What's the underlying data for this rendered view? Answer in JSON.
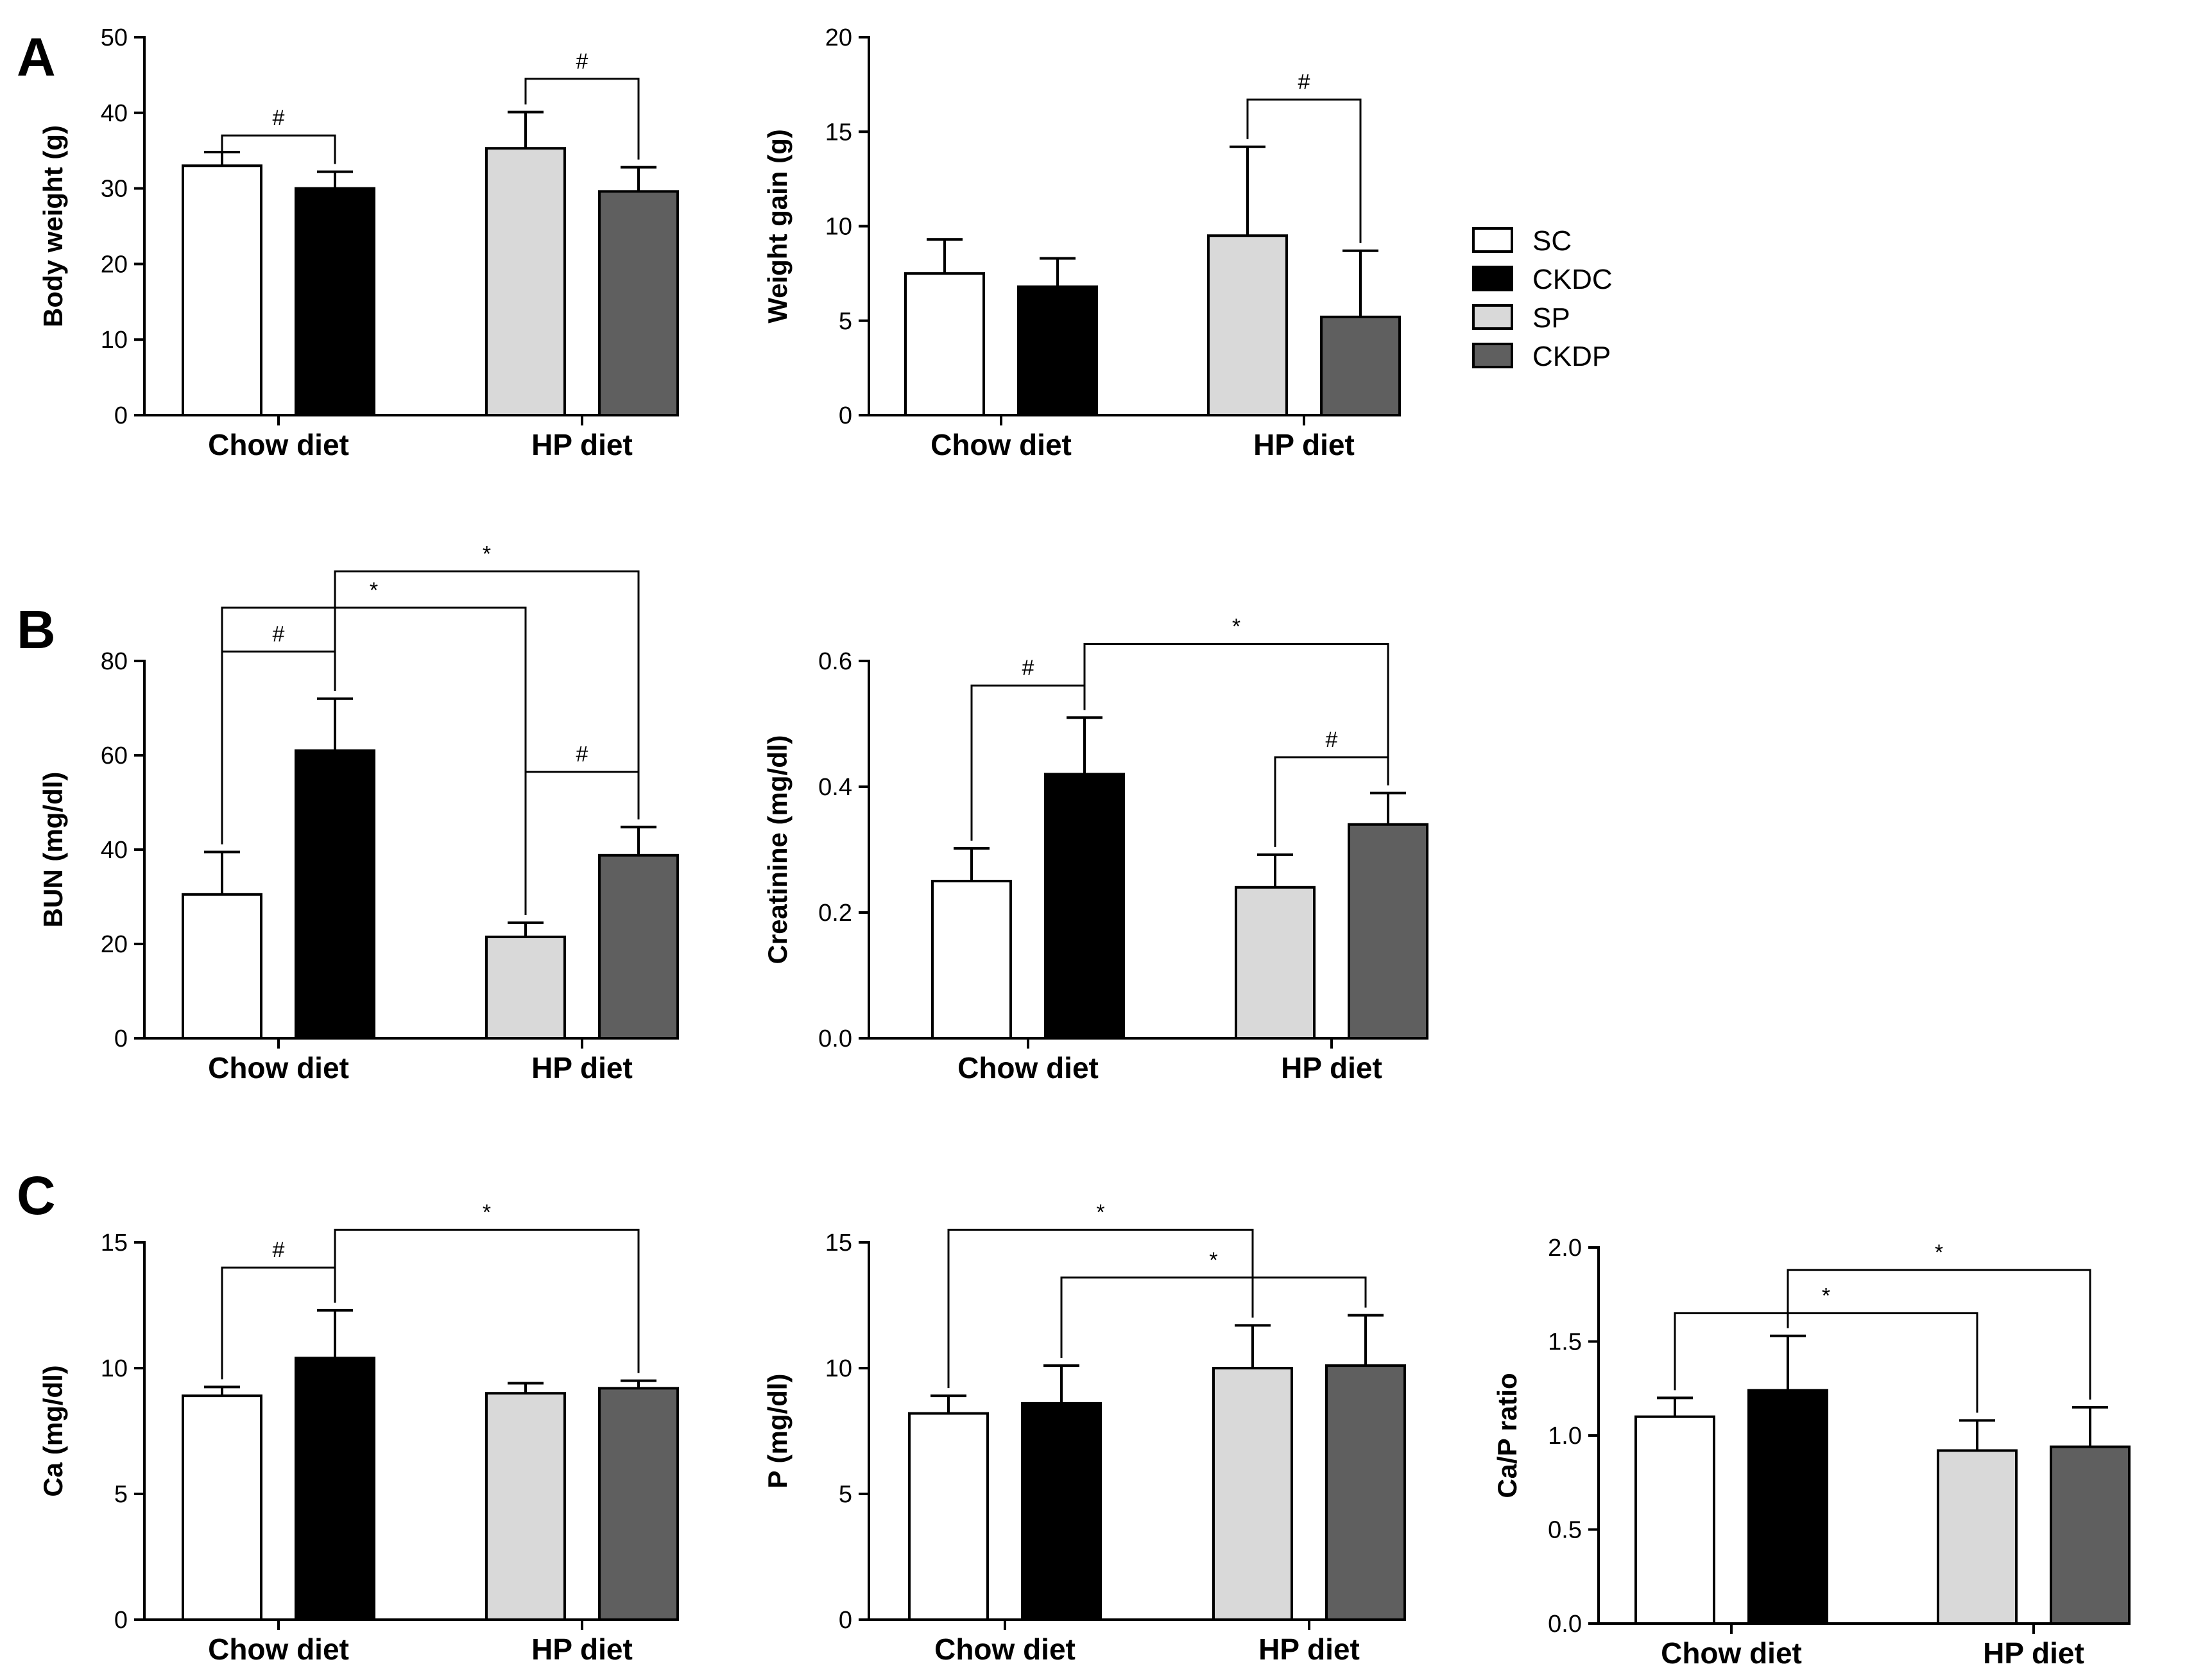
{
  "legend": [
    {
      "label": "SC",
      "color": "#ffffff"
    },
    {
      "label": "CKDC",
      "color": "#000000"
    },
    {
      "label": "SP",
      "color": "#d9d9d9"
    },
    {
      "label": "CKDP",
      "color": "#5f5f5f"
    }
  ],
  "chart_data": [
    {
      "panel": "A",
      "type": "bar",
      "categories": [
        "Chow diet",
        "HP diet"
      ],
      "ylabel": "Body weight (g)",
      "ylim": [
        0,
        50
      ],
      "yticks": [
        0,
        10,
        20,
        30,
        40,
        50
      ],
      "ytick_labels": [
        "0",
        "10",
        "20",
        "30",
        "40",
        "50"
      ],
      "series": [
        {
          "name": "SC",
          "values": [
            33,
            null
          ],
          "errors": [
            1.8,
            null
          ]
        },
        {
          "name": "CKDC",
          "values": [
            30,
            null
          ],
          "errors": [
            2.2,
            null
          ]
        },
        {
          "name": "SP",
          "values": [
            null,
            35.3
          ],
          "errors": [
            null,
            4.8
          ]
        },
        {
          "name": "CKDP",
          "values": [
            null,
            29.6
          ],
          "errors": [
            null,
            3.2
          ]
        }
      ],
      "annotations": [
        {
          "label": "#",
          "from": [
            0,
            "SC"
          ],
          "to": [
            0,
            "CKDC"
          ],
          "level": 37
        },
        {
          "label": "#",
          "from": [
            1,
            "SP"
          ],
          "to": [
            1,
            "CKDP"
          ],
          "level": 44.5
        }
      ]
    },
    {
      "panel": "",
      "type": "bar",
      "categories": [
        "Chow diet",
        "HP diet"
      ],
      "ylabel": "Weight gain (g)",
      "ylim": [
        0,
        20
      ],
      "yticks": [
        0,
        5,
        10,
        15,
        20
      ],
      "ytick_labels": [
        "0",
        "5",
        "10",
        "15",
        "20"
      ],
      "series": [
        {
          "name": "SC",
          "values": [
            7.5,
            null
          ],
          "errors": [
            1.8,
            null
          ]
        },
        {
          "name": "CKDC",
          "values": [
            6.8,
            null
          ],
          "errors": [
            1.5,
            null
          ]
        },
        {
          "name": "SP",
          "values": [
            null,
            9.5
          ],
          "errors": [
            null,
            4.7
          ]
        },
        {
          "name": "CKDP",
          "values": [
            null,
            5.2
          ],
          "errors": [
            null,
            3.5
          ]
        }
      ],
      "annotations": [
        {
          "label": "#",
          "from": [
            1,
            "SP"
          ],
          "to": [
            1,
            "CKDP"
          ],
          "level": 16.7
        }
      ]
    },
    {
      "panel": "B",
      "type": "bar",
      "categories": [
        "Chow diet",
        "HP diet"
      ],
      "ylabel": "BUN (mg/dl)",
      "ylim": [
        0,
        80
      ],
      "yticks": [
        0,
        20,
        40,
        60,
        80
      ],
      "ytick_labels": [
        "0",
        "20",
        "40",
        "60",
        "80"
      ],
      "series": [
        {
          "name": "SC",
          "values": [
            30.5,
            null
          ],
          "errors": [
            9,
            null
          ]
        },
        {
          "name": "CKDC",
          "values": [
            61,
            null
          ],
          "errors": [
            11,
            null
          ]
        },
        {
          "name": "SP",
          "values": [
            null,
            21.5
          ],
          "errors": [
            null,
            3
          ]
        },
        {
          "name": "CKDP",
          "values": [
            null,
            38.8
          ],
          "errors": [
            null,
            6
          ]
        }
      ],
      "annotations": [
        {
          "label": "#",
          "from": [
            0,
            "SC"
          ],
          "to": [
            0,
            "CKDC"
          ],
          "level": 82
        },
        {
          "label": "*",
          "from": [
            0,
            "SC"
          ],
          "to": [
            1,
            "SP"
          ],
          "level": 91.3
        },
        {
          "label": "*",
          "from": [
            0,
            "CKDC"
          ],
          "to": [
            1,
            "CKDP"
          ],
          "level": 99
        },
        {
          "label": "#",
          "from": [
            1,
            "SP"
          ],
          "to": [
            1,
            "CKDP"
          ],
          "level": 56.5
        }
      ]
    },
    {
      "panel": "",
      "type": "bar",
      "categories": [
        "Chow diet",
        "HP diet"
      ],
      "ylabel": "Creatinine (mg/dl)",
      "ylim": [
        0,
        0.6
      ],
      "yticks": [
        0,
        0.2,
        0.4,
        0.6
      ],
      "ytick_labels": [
        "0.0",
        "0.2",
        "0.4",
        "0.6"
      ],
      "series": [
        {
          "name": "SC",
          "values": [
            0.25,
            null
          ],
          "errors": [
            0.052,
            null
          ]
        },
        {
          "name": "CKDC",
          "values": [
            0.42,
            null
          ],
          "errors": [
            0.09,
            null
          ]
        },
        {
          "name": "SP",
          "values": [
            null,
            0.24
          ],
          "errors": [
            null,
            0.052
          ]
        },
        {
          "name": "CKDP",
          "values": [
            null,
            0.34
          ],
          "errors": [
            null,
            0.05
          ]
        }
      ],
      "annotations": [
        {
          "label": "#",
          "from": [
            0,
            "SC"
          ],
          "to": [
            0,
            "CKDC"
          ],
          "level": 0.561
        },
        {
          "label": "*",
          "from": [
            0,
            "CKDC"
          ],
          "to": [
            1,
            "CKDP"
          ],
          "level": 0.627
        },
        {
          "label": "#",
          "from": [
            1,
            "SP"
          ],
          "to": [
            1,
            "CKDP"
          ],
          "level": 0.447
        }
      ]
    },
    {
      "panel": "C",
      "type": "bar",
      "categories": [
        "Chow diet",
        "HP diet"
      ],
      "ylabel": "Ca (mg/dl)",
      "ylim": [
        0,
        15
      ],
      "yticks": [
        0,
        5,
        10,
        15
      ],
      "ytick_labels": [
        "0",
        "5",
        "10",
        "15"
      ],
      "series": [
        {
          "name": "SC",
          "values": [
            8.9,
            null
          ],
          "errors": [
            0.35,
            null
          ]
        },
        {
          "name": "CKDC",
          "values": [
            10.4,
            null
          ],
          "errors": [
            1.9,
            null
          ]
        },
        {
          "name": "SP",
          "values": [
            null,
            9
          ],
          "errors": [
            null,
            0.4
          ]
        },
        {
          "name": "CKDP",
          "values": [
            null,
            9.2
          ],
          "errors": [
            null,
            0.3
          ]
        }
      ],
      "annotations": [
        {
          "label": "#",
          "from": [
            0,
            "SC"
          ],
          "to": [
            0,
            "CKDC"
          ],
          "level": 14
        },
        {
          "label": "*",
          "from": [
            0,
            "CKDC"
          ],
          "to": [
            1,
            "CKDP"
          ],
          "level": 15.5
        }
      ]
    },
    {
      "panel": "",
      "type": "bar",
      "categories": [
        "Chow diet",
        "HP diet"
      ],
      "ylabel": "P (mg/dl)",
      "ylim": [
        0,
        15
      ],
      "yticks": [
        0,
        5,
        10,
        15
      ],
      "ytick_labels": [
        "0",
        "5",
        "10",
        "15"
      ],
      "series": [
        {
          "name": "SC",
          "values": [
            8.2,
            null
          ],
          "errors": [
            0.7,
            null
          ]
        },
        {
          "name": "CKDC",
          "values": [
            8.6,
            null
          ],
          "errors": [
            1.5,
            null
          ]
        },
        {
          "name": "SP",
          "values": [
            null,
            10
          ],
          "errors": [
            null,
            1.7
          ]
        },
        {
          "name": "CKDP",
          "values": [
            null,
            10.1
          ],
          "errors": [
            null,
            2
          ]
        }
      ],
      "annotations": [
        {
          "label": "*",
          "from": [
            0,
            "SC"
          ],
          "to": [
            1,
            "SP"
          ],
          "level": 15.5
        },
        {
          "label": "*",
          "from": [
            0,
            "CKDC"
          ],
          "to": [
            1,
            "CKDP"
          ],
          "level": 13.6
        }
      ]
    },
    {
      "panel": "",
      "type": "bar",
      "categories": [
        "Chow diet",
        "HP diet"
      ],
      "ylabel": "Ca/P ratio",
      "ylim": [
        0,
        2.0
      ],
      "yticks": [
        0,
        0.5,
        1.0,
        1.5,
        2.0
      ],
      "ytick_labels": [
        "0.0",
        "0.5",
        "1.0",
        "1.5",
        "2.0"
      ],
      "series": [
        {
          "name": "SC",
          "values": [
            1.1,
            null
          ],
          "errors": [
            0.1,
            null
          ]
        },
        {
          "name": "CKDC",
          "values": [
            1.24,
            null
          ],
          "errors": [
            0.29,
            null
          ]
        },
        {
          "name": "SP",
          "values": [
            null,
            0.92
          ],
          "errors": [
            null,
            0.16
          ]
        },
        {
          "name": "CKDP",
          "values": [
            null,
            0.94
          ],
          "errors": [
            null,
            0.21
          ]
        }
      ],
      "annotations": [
        {
          "label": "*",
          "from": [
            0,
            "SC"
          ],
          "to": [
            1,
            "SP"
          ],
          "level": 1.65
        },
        {
          "label": "*",
          "from": [
            0,
            "CKDC"
          ],
          "to": [
            1,
            "CKDP"
          ],
          "level": 1.88
        }
      ]
    }
  ]
}
